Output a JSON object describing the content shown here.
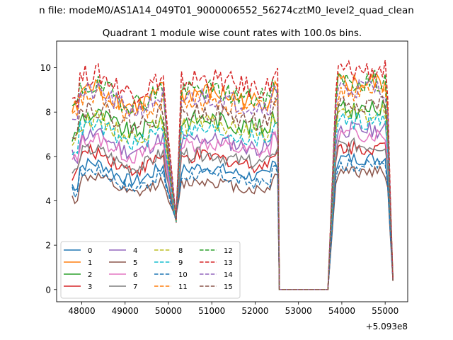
{
  "figure": {
    "suptitle": "n file: modeM0/AS1A14_049T01_9000006552_56274cztM0_level2_quad_clean",
    "title": "Quadrant 1 module wise count rates with 100.0s bins.",
    "x_offset_label": "+5.093e8"
  },
  "chart_data": {
    "type": "line",
    "title": "Quadrant 1 module wise count rates with 100.0s bins.",
    "xlabel": "",
    "ylabel": "",
    "x_offset": 509300000,
    "xlim": [
      47420,
      55520
    ],
    "ylim": [
      -0.55,
      11.2
    ],
    "x_ticks": [
      48000,
      49000,
      50000,
      51000,
      52000,
      53000,
      54000,
      55000
    ],
    "y_ticks": [
      0,
      2,
      4,
      6,
      8,
      10
    ],
    "grid": false,
    "legend": {
      "placement": "lower-left",
      "columns": 4
    },
    "x_segments": [
      {
        "start": 47780,
        "end": 50180,
        "shape": "dip_end"
      },
      {
        "start": 50180,
        "end": 52560,
        "shape": "plateau"
      },
      {
        "start": 52560,
        "end": 53680,
        "shape": "gap"
      },
      {
        "start": 53680,
        "end": 55180,
        "shape": "plateau_end"
      }
    ],
    "series": [
      {
        "name": "0",
        "level": 5.3,
        "style": "solid",
        "color": "#1f77b4"
      },
      {
        "name": "1",
        "level": 8.7,
        "style": "solid",
        "color": "#ff7f0e"
      },
      {
        "name": "2",
        "level": 7.5,
        "style": "solid",
        "color": "#2ca02c"
      },
      {
        "name": "3",
        "level": 5.8,
        "style": "solid",
        "color": "#d62728"
      },
      {
        "name": "4",
        "level": 6.6,
        "style": "solid",
        "color": "#9467bd"
      },
      {
        "name": "5",
        "level": 4.7,
        "style": "solid",
        "color": "#8c564b"
      },
      {
        "name": "6",
        "level": 6.4,
        "style": "solid",
        "color": "#e377c2"
      },
      {
        "name": "7",
        "level": 5.9,
        "style": "solid",
        "color": "#7f7f7f"
      },
      {
        "name": "8",
        "level": 7.3,
        "style": "dashed",
        "color": "#bcbd22"
      },
      {
        "name": "9",
        "level": 7.0,
        "style": "dashed",
        "color": "#17becf"
      },
      {
        "name": "10",
        "level": 5.0,
        "style": "dashed",
        "color": "#1f77b4"
      },
      {
        "name": "11",
        "level": 8.3,
        "style": "dashed",
        "color": "#ff7f0e"
      },
      {
        "name": "12",
        "level": 8.8,
        "style": "dashed",
        "color": "#2ca02c"
      },
      {
        "name": "13",
        "level": 9.3,
        "style": "dashed",
        "color": "#d62728"
      },
      {
        "name": "14",
        "level": 8.5,
        "style": "dashed",
        "color": "#9467bd"
      },
      {
        "name": "15",
        "level": 7.8,
        "style": "dashed",
        "color": "#8c564b"
      }
    ]
  }
}
